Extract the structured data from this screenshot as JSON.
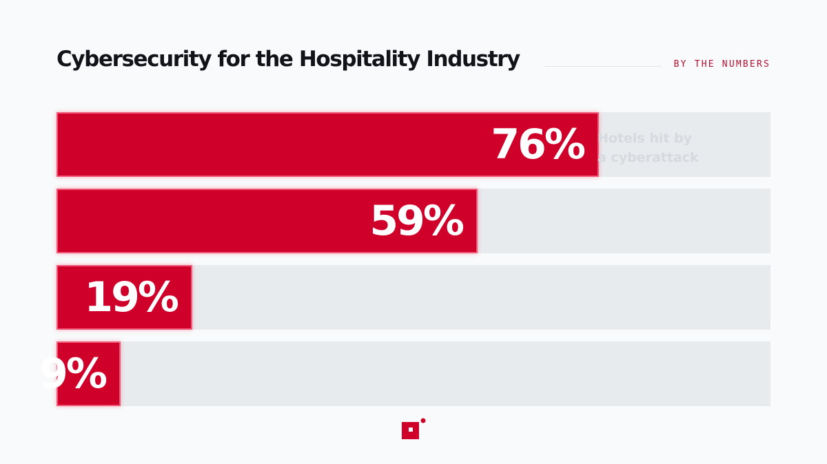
{
  "header": {
    "title": "Cybersecurity for the Hospitality Industry",
    "kicker": "BY THE NUMBERS"
  },
  "chart_data": {
    "type": "bar",
    "orientation": "horizontal",
    "xlim": [
      0,
      100
    ],
    "grid": false,
    "bars": [
      {
        "value": 76,
        "label": "76%",
        "annotation_line1": "Hotels hit by",
        "annotation_line2": "a cyberattack"
      },
      {
        "value": 59,
        "label": "59%"
      },
      {
        "value": 19,
        "label": "19%"
      },
      {
        "value": 9,
        "label": "9%"
      }
    ],
    "bar_color": "#cf0029",
    "track_color": "#e8ebee"
  },
  "logo": {
    "icon": "brand-square-logo-icon",
    "color": "#cf0029"
  }
}
